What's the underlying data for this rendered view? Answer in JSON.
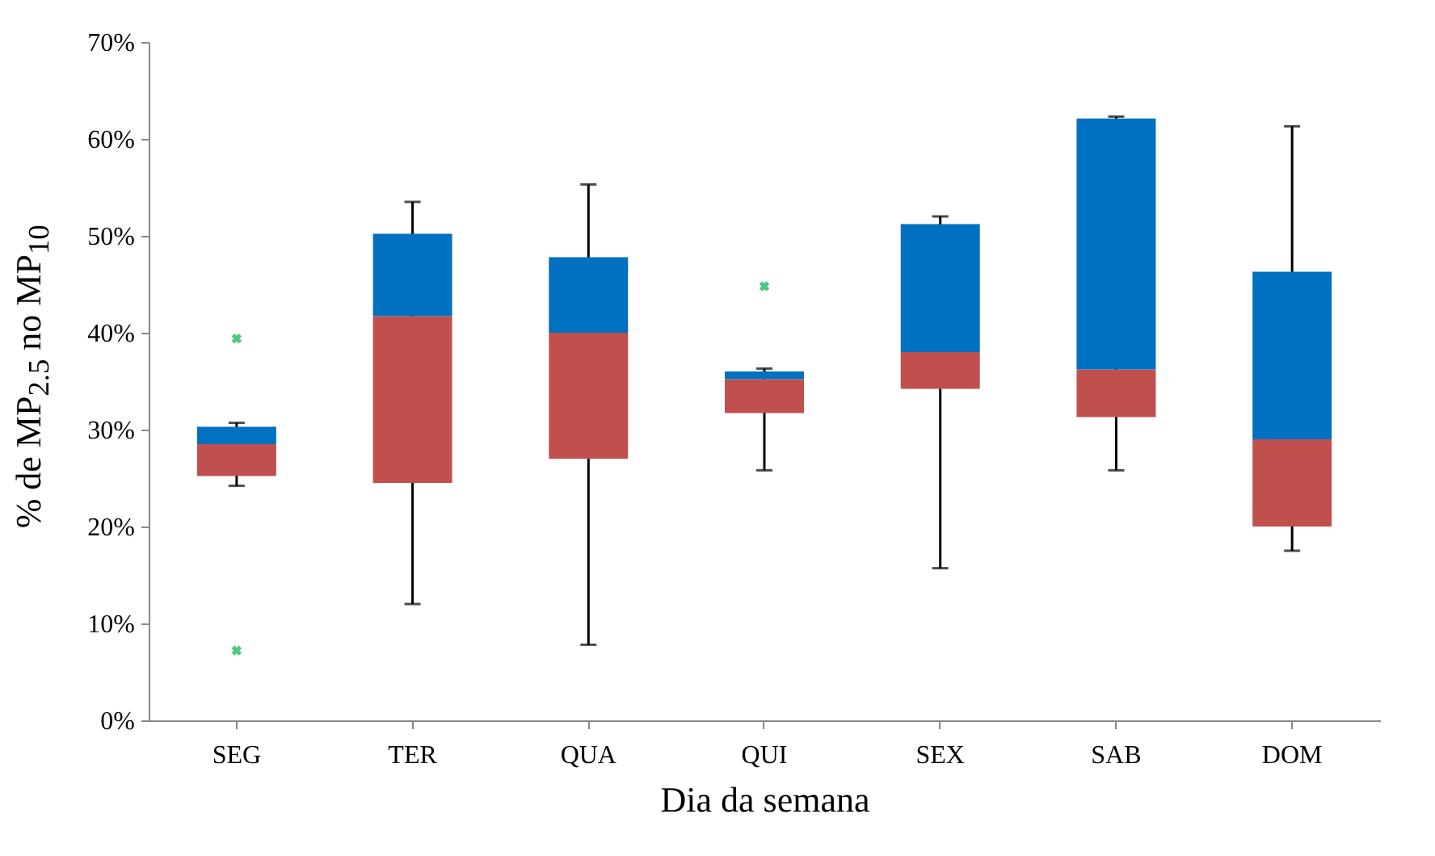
{
  "chart_data": {
    "type": "box",
    "xlabel": "Dia da semana",
    "ylabel": "% de MP$_{2.5}$ no MP$_{10}$",
    "categories": [
      "SEG",
      "TER",
      "QUA",
      "QUI",
      "SEX",
      "SAB",
      "DOM"
    ],
    "colors": [
      "#0070c0",
      "#0070c0",
      "#0070c0",
      "#0070c0",
      "#0070c0",
      "#0070c0",
      "#0070c0"
    ],
    "series": [
      {
        "color": "#c0504d",
        "boxes": [
          {
            "low": 24.2,
            "q1": 25.2,
            "median": 28.5,
            "q3": 30.3,
            "high": 30.7
          },
          {
            "low": 12.0,
            "q1": 24.5,
            "median": 41.7,
            "q3": 50.2,
            "high": 53.5
          },
          {
            "low": 7.8,
            "q1": 27.0,
            "median": 40.0,
            "q3": 47.8,
            "high": 55.3
          },
          {
            "low": 25.8,
            "q1": 31.7,
            "median": 35.2,
            "q3": 36.0,
            "high": 36.3
          },
          {
            "low": 15.7,
            "q1": 34.2,
            "median": 38.0,
            "q3": 51.2,
            "high": 52.0
          },
          {
            "low": 25.8,
            "q1": 31.3,
            "median": 36.2,
            "q3": 62.1,
            "high": 62.3
          },
          {
            "low": 17.5,
            "q1": 20.0,
            "median": 29.0,
            "q3": 46.3,
            "high": 61.3
          }
        ]
      },
      {
        "type": "scatter",
        "color": "#00b050",
        "x": [
          "SEG",
          "SEG",
          "QUI"
        ],
        "values": [
          39.4,
          7.2,
          44.8
        ]
      }
    ],
    "marker": "cross",
    "ylim": [
      0,
      70
    ],
    "yticks": [
      {
        "value": 0,
        "label": "0%"
      },
      {
        "value": 10,
        "label": "10%"
      },
      {
        "value": 20,
        "label": "20%"
      },
      {
        "value": 30,
        "label": "30%"
      },
      {
        "value": 40,
        "label": "40%"
      },
      {
        "value": 50,
        "label": "50%"
      },
      {
        "value": 60,
        "label": "60%"
      },
      {
        "value": 70,
        "label": "70%"
      }
    ],
    "grid": false
  }
}
